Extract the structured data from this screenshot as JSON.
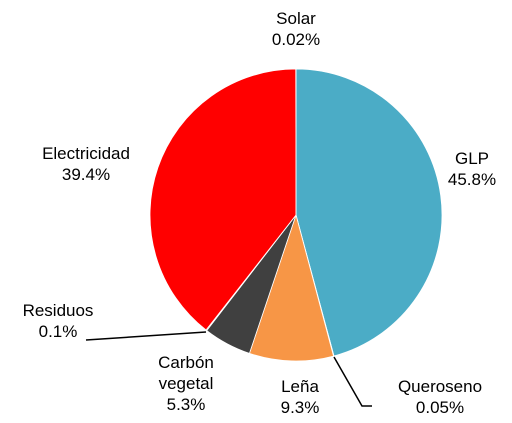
{
  "chart_data": {
    "type": "pie",
    "categories": [
      "GLP",
      "Queroseno",
      "Leña",
      "Carbón vegetal",
      "Residuos",
      "Electricidad",
      "Solar"
    ],
    "values": [
      45.8,
      0.05,
      9.3,
      5.3,
      0.1,
      39.4,
      0.02
    ],
    "value_labels": [
      "45.8%",
      "0.05%",
      "9.3%",
      "5.3%",
      "0.1%",
      "39.4%",
      "0.02%"
    ],
    "colors": [
      "#4bacc6",
      "#1f497d",
      "#f79646",
      "#404040",
      "#000000",
      "#ff0000",
      "#ffc000"
    ]
  }
}
